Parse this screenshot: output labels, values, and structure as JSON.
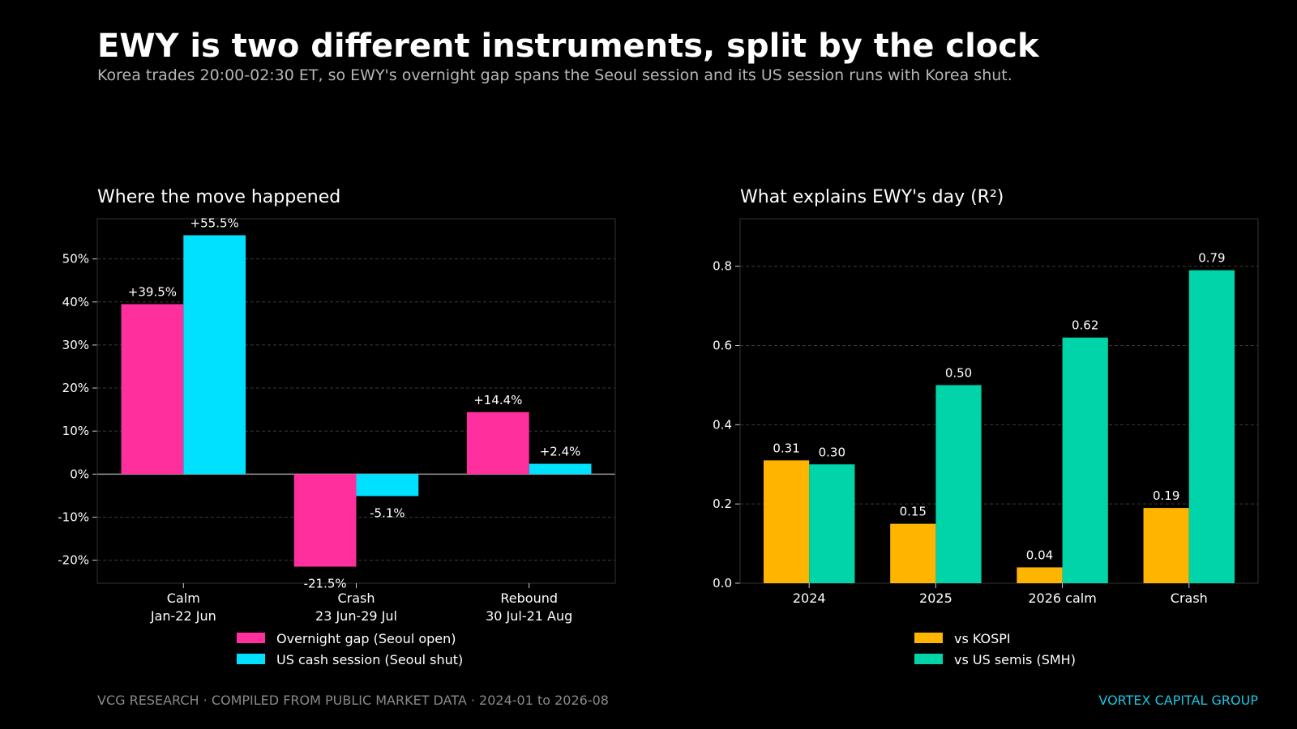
{
  "title": "EWY is two different instruments, split by the clock",
  "subtitle": "Korea trades 20:00-02:30 ET, so EWY's overnight gap spans the Seoul session and its US session runs with Korea shut.",
  "footer": {
    "left": "VCG RESEARCH  ·  COMPILED FROM PUBLIC MARKET DATA ·  2024-01 to 2026-08",
    "right": "VORTEX CAPITAL GROUP"
  },
  "colors": {
    "pink": "#ff2f9e",
    "cyan": "#00e1ff",
    "amber": "#ffb400",
    "teal": "#00d4a8"
  },
  "chart_data": [
    {
      "type": "bar",
      "title": "Where the move happened",
      "categories": [
        [
          "Calm",
          "Jan-22 Jun"
        ],
        [
          "Crash",
          "23 Jun-29 Jul"
        ],
        [
          "Rebound",
          "30 Jul-21 Aug"
        ]
      ],
      "series": [
        {
          "name": "Overnight gap (Seoul open)",
          "values": [
            39.5,
            -21.5,
            14.4
          ],
          "labels": [
            "+39.5%",
            "-21.5%",
            "+14.4%"
          ],
          "color": "#ff2f9e"
        },
        {
          "name": "US cash session (Seoul shut)",
          "values": [
            55.5,
            -5.1,
            2.4
          ],
          "labels": [
            "+55.5%",
            "-5.1%",
            "+2.4%"
          ],
          "color": "#00e1ff"
        }
      ],
      "yticks": [
        -20,
        -10,
        0,
        10,
        20,
        30,
        40,
        50
      ],
      "ytick_labels": [
        "-20%",
        "-10%",
        "0%",
        "10%",
        "20%",
        "30%",
        "40%",
        "50%"
      ],
      "ylim": [
        -25.35,
        59.35
      ],
      "grid": true,
      "legend": "bottom-center"
    },
    {
      "type": "bar",
      "title": "What explains EWY's day (R²)",
      "categories": [
        [
          "2024"
        ],
        [
          "2025"
        ],
        [
          "2026 calm"
        ],
        [
          "Crash"
        ]
      ],
      "series": [
        {
          "name": "vs KOSPI",
          "values": [
            0.31,
            0.15,
            0.04,
            0.19
          ],
          "labels": [
            "0.31",
            "0.15",
            "0.04",
            "0.19"
          ],
          "color": "#ffb400"
        },
        {
          "name": "vs US semis (SMH)",
          "values": [
            0.3,
            0.5,
            0.62,
            0.79
          ],
          "labels": [
            "0.30",
            "0.50",
            "0.62",
            "0.79"
          ],
          "color": "#00d4a8"
        }
      ],
      "yticks": [
        0.0,
        0.2,
        0.4,
        0.6,
        0.8
      ],
      "ytick_labels": [
        "0.0",
        "0.2",
        "0.4",
        "0.6",
        "0.8"
      ],
      "ylim": [
        0,
        0.92
      ],
      "grid": true,
      "legend": "bottom-center"
    }
  ]
}
